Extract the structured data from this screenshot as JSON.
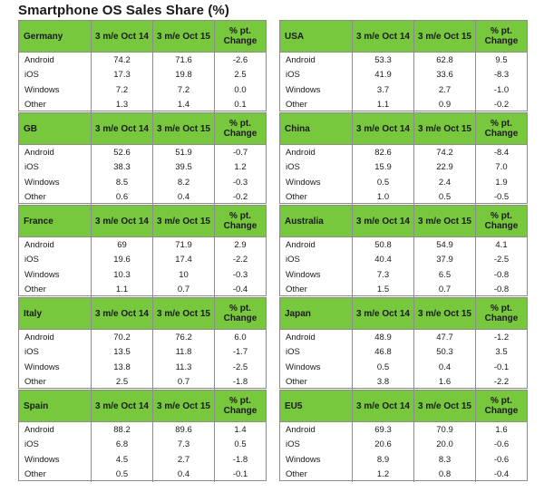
{
  "title": "Smartphone OS Sales Share (%)",
  "header": {
    "period1": "3 m/e Oct 14",
    "period2": "3 m/e Oct 15",
    "change": "% pt. Change"
  },
  "left": [
    {
      "region": "Germany",
      "rows": [
        [
          "Android",
          "74.2",
          "71.6",
          "-2.6"
        ],
        [
          "iOS",
          "17.3",
          "19.8",
          "2.5"
        ],
        [
          "Windows",
          "7.2",
          "7.2",
          "0.0"
        ],
        [
          "Other",
          "1.3",
          "1.4",
          "0.1"
        ]
      ]
    },
    {
      "region": "GB",
      "rows": [
        [
          "Android",
          "52.6",
          "51.9",
          "-0.7"
        ],
        [
          "iOS",
          "38.3",
          "39.5",
          "1.2"
        ],
        [
          "Windows",
          "8.5",
          "8.2",
          "-0.3"
        ],
        [
          "Other",
          "0.6",
          "0.4",
          "-0.2"
        ]
      ]
    },
    {
      "region": "France",
      "rows": [
        [
          "Android",
          "69",
          "71.9",
          "2.9"
        ],
        [
          "iOS",
          "19.6",
          "17.4",
          "-2.2"
        ],
        [
          "Windows",
          "10.3",
          "10",
          "-0.3"
        ],
        [
          "Other",
          "1.1",
          "0.7",
          "-0.4"
        ]
      ]
    },
    {
      "region": "Italy",
      "rows": [
        [
          "Android",
          "70.2",
          "76.2",
          "6.0"
        ],
        [
          "iOS",
          "13.5",
          "11.8",
          "-1.7"
        ],
        [
          "Windows",
          "13.8",
          "11.3",
          "-2.5"
        ],
        [
          "Other",
          "2.5",
          "0.7",
          "-1.8"
        ]
      ]
    },
    {
      "region": "Spain",
      "rows": [
        [
          "Android",
          "88.2",
          "89.6",
          "1.4"
        ],
        [
          "iOS",
          "6.8",
          "7.3",
          "0.5"
        ],
        [
          "Windows",
          "4.5",
          "2.7",
          "-1.8"
        ],
        [
          "Other",
          "0.5",
          "0.4",
          "-0.1"
        ]
      ]
    }
  ],
  "right": [
    {
      "region": "USA",
      "rows": [
        [
          "Android",
          "53.3",
          "62.8",
          "9.5"
        ],
        [
          "iOS",
          "41.9",
          "33.6",
          "-8.3"
        ],
        [
          "Windows",
          "3.7",
          "2.7",
          "-1.0"
        ],
        [
          "Other",
          "1.1",
          "0.9",
          "-0.2"
        ]
      ]
    },
    {
      "region": "China",
      "rows": [
        [
          "Android",
          "82.6",
          "74.2",
          "-8.4"
        ],
        [
          "iOS",
          "15.9",
          "22.9",
          "7.0"
        ],
        [
          "Windows",
          "0.5",
          "2.4",
          "1.9"
        ],
        [
          "Other",
          "1.0",
          "0.5",
          "-0.5"
        ]
      ]
    },
    {
      "region": "Australia",
      "rows": [
        [
          "Android",
          "50.8",
          "54.9",
          "4.1"
        ],
        [
          "iOS",
          "40.4",
          "37.9",
          "-2.5"
        ],
        [
          "Windows",
          "7.3",
          "6.5",
          "-0.8"
        ],
        [
          "Other",
          "1.5",
          "0.7",
          "-0.8"
        ]
      ]
    },
    {
      "region": "Japan",
      "rows": [
        [
          "Android",
          "48.9",
          "47.7",
          "-1.2"
        ],
        [
          "iOS",
          "46.8",
          "50.3",
          "3.5"
        ],
        [
          "Windows",
          "0.5",
          "0.4",
          "-0.1"
        ],
        [
          "Other",
          "3.8",
          "1.6",
          "-2.2"
        ]
      ]
    },
    {
      "region": "EU5",
      "rows": [
        [
          "Android",
          "69.3",
          "70.9",
          "1.6"
        ],
        [
          "iOS",
          "20.6",
          "20.0",
          "-0.6"
        ],
        [
          "Windows",
          "8.9",
          "8.3",
          "-0.6"
        ],
        [
          "Other",
          "1.2",
          "0.8",
          "-0.4"
        ]
      ]
    }
  ],
  "colors": {
    "header_green": "#77c83d",
    "border": "#8c8c8c"
  }
}
